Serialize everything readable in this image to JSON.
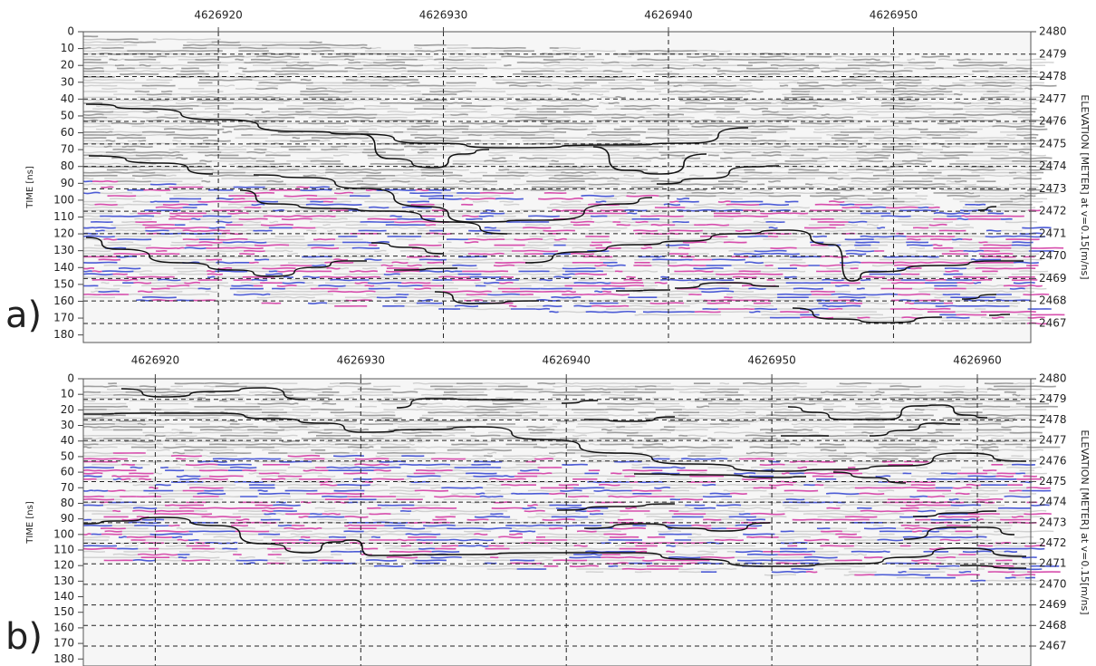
{
  "chart_data": [
    {
      "type": "radargram",
      "panel_label": "a)",
      "y_label": "TIME [ns]",
      "y2_label": "ELEVATION [METER] at v=0.15[m/ns]",
      "xlim": [
        4626914,
        4626956.1
      ],
      "xticks": [
        4626920,
        4626930,
        4626940,
        4626950
      ],
      "ylim": [
        0,
        184.5
      ],
      "yticks": [
        0,
        10,
        20,
        30,
        40,
        50,
        60,
        70,
        80,
        90,
        100,
        110,
        120,
        130,
        140,
        150,
        160,
        170,
        180
      ],
      "y2lim": [
        2466.15,
        2480
      ],
      "y2ticks": [
        2480,
        2479,
        2478,
        2477,
        2476,
        2475,
        2474,
        2473,
        2472,
        2471,
        2470,
        2469,
        2468,
        2467
      ],
      "grid": true
    },
    {
      "type": "radargram",
      "panel_label": "b)",
      "y_label": "TIME [ns]",
      "y2_label": "ELEVATION [METER] at v=0.15[m/ns]",
      "xlim": [
        4626916.5,
        4626962.6
      ],
      "xticks": [
        4626920,
        4626930,
        4626940,
        4626950,
        4626960
      ],
      "ylim": [
        0,
        184.5
      ],
      "yticks": [
        0,
        10,
        20,
        30,
        40,
        50,
        60,
        70,
        80,
        90,
        100,
        110,
        120,
        130,
        140,
        150,
        160,
        170,
        180
      ],
      "y2lim": [
        2466.03,
        2480
      ],
      "y2ticks": [
        2480,
        2479,
        2478,
        2477,
        2476,
        2475,
        2474,
        2473,
        2472,
        2471,
        2470,
        2469,
        2468,
        2467
      ],
      "grid": true
    }
  ]
}
